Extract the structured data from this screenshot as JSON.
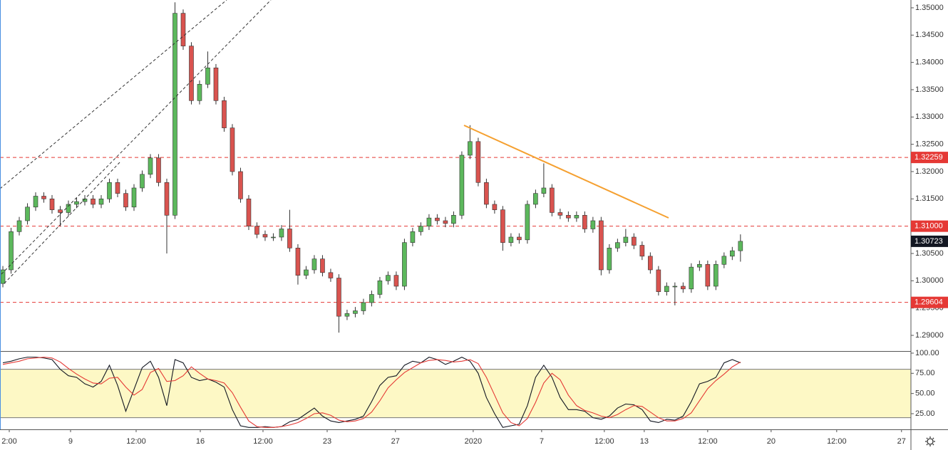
{
  "chart_data": [
    {
      "type": "candlestick",
      "xlim": [
        -0.35,
        110.8
      ],
      "xticks": [
        {
          "value": 0.78,
          "label": "2:00"
        },
        {
          "value": 8.26,
          "label": "9"
        },
        {
          "value": 16.26,
          "label": "12:00"
        },
        {
          "value": 24.09,
          "label": "16"
        },
        {
          "value": 31.74,
          "label": "12:00"
        },
        {
          "value": 39.57,
          "label": "23"
        },
        {
          "value": 47.9,
          "label": "27"
        },
        {
          "value": 57.39,
          "label": "2020"
        },
        {
          "value": 65.74,
          "label": "7"
        },
        {
          "value": 73.39,
          "label": "12:00"
        },
        {
          "value": 78.26,
          "label": "13"
        },
        {
          "value": 86,
          "label": "12:00"
        },
        {
          "value": 93.74,
          "label": "20"
        },
        {
          "value": 101.74,
          "label": "12:00"
        },
        {
          "value": 109.65,
          "label": "27"
        }
      ],
      "ylim": [
        1.28713,
        1.35143
      ],
      "yticks": [
        {
          "value": 1.29,
          "label": "1.29000"
        },
        {
          "value": 1.295,
          "label": "1.29500"
        },
        {
          "value": 1.3,
          "label": "1.30000"
        },
        {
          "value": 1.305,
          "label": "1.30500"
        },
        {
          "value": 1.31,
          "label": "1.31000"
        },
        {
          "value": 1.315,
          "label": "1.31500"
        },
        {
          "value": 1.32,
          "label": "1.32000"
        },
        {
          "value": 1.325,
          "label": "1.32500"
        },
        {
          "value": 1.33,
          "label": "1.33000"
        },
        {
          "value": 1.335,
          "label": "1.33500"
        },
        {
          "value": 1.34,
          "label": "1.34000"
        },
        {
          "value": 1.345,
          "label": "1.34500"
        },
        {
          "value": 1.35,
          "label": "1.35000"
        }
      ],
      "up_color": "#5cb85c",
      "down_color": "#d9534f",
      "open": [
        1.2995,
        1.302,
        1.309,
        1.311,
        1.3135,
        1.3155,
        1.315,
        1.313,
        1.3125,
        1.314,
        1.3145,
        1.315,
        1.314,
        1.315,
        1.318,
        1.316,
        1.3135,
        1.317,
        1.3195,
        1.3225,
        1.318,
        1.312,
        1.349,
        1.343,
        1.333,
        1.336,
        1.339,
        1.333,
        1.328,
        1.32,
        1.315,
        1.31,
        1.3085,
        1.308,
        1.308,
        1.3095,
        1.306,
        1.301,
        1.302,
        1.304,
        1.3015,
        1.3005,
        1.2935,
        1.294,
        1.2945,
        1.296,
        1.2975,
        1.3,
        1.301,
        1.299,
        1.307,
        1.309,
        1.31,
        1.3115,
        1.311,
        1.3105,
        1.312,
        1.323,
        1.3255,
        1.318,
        1.314,
        1.313,
        1.307,
        1.308,
        1.3075,
        1.314,
        1.316,
        1.317,
        1.3125,
        1.312,
        1.3115,
        1.312,
        1.3095,
        1.311,
        1.302,
        1.306,
        1.307,
        1.308,
        1.3065,
        1.3045,
        1.302,
        1.298,
        1.299,
        1.299,
        1.2985,
        1.3025,
        1.303,
        1.299,
        1.303,
        1.3045,
        1.3055
      ],
      "high": [
        1.3027,
        1.3097,
        1.3117,
        1.3142,
        1.3162,
        1.3162,
        1.3157,
        1.3137,
        1.3147,
        1.3152,
        1.3157,
        1.3157,
        1.3157,
        1.3187,
        1.3187,
        1.3167,
        1.3177,
        1.3202,
        1.3232,
        1.3232,
        1.3187,
        1.351,
        1.3497,
        1.3437,
        1.3367,
        1.342,
        1.3397,
        1.3337,
        1.3287,
        1.3207,
        1.3157,
        1.3107,
        1.3092,
        1.3087,
        1.3102,
        1.313,
        1.3067,
        1.3027,
        1.3047,
        1.3047,
        1.3022,
        1.3012,
        1.2947,
        1.2952,
        1.2967,
        1.2982,
        1.3007,
        1.3017,
        1.3017,
        1.3077,
        1.3097,
        1.3107,
        1.3122,
        1.3122,
        1.3117,
        1.3127,
        1.3237,
        1.3285,
        1.3262,
        1.3187,
        1.3147,
        1.3137,
        1.3087,
        1.3087,
        1.3147,
        1.3167,
        1.3215,
        1.3177,
        1.3132,
        1.3127,
        1.3127,
        1.3127,
        1.3117,
        1.3117,
        1.3067,
        1.3077,
        1.3095,
        1.3087,
        1.3072,
        1.3052,
        1.3027,
        1.2997,
        1.2997,
        1.2997,
        1.3032,
        1.3037,
        1.3037,
        1.3037,
        1.3052,
        1.3062,
        1.3085
      ],
      "low": [
        1.2988,
        1.3013,
        1.3083,
        1.3103,
        1.3128,
        1.3143,
        1.3123,
        1.31,
        1.3118,
        1.3133,
        1.3138,
        1.3133,
        1.3133,
        1.3143,
        1.3153,
        1.3128,
        1.3128,
        1.3163,
        1.3188,
        1.3173,
        1.305,
        1.3113,
        1.3423,
        1.3323,
        1.3323,
        1.3353,
        1.3323,
        1.3273,
        1.3193,
        1.3143,
        1.3093,
        1.3078,
        1.3073,
        1.3073,
        1.3073,
        1.3053,
        1.2993,
        1.3003,
        1.3013,
        1.3008,
        1.2998,
        1.2905,
        1.2928,
        1.2933,
        1.2938,
        1.2953,
        1.2968,
        1.2993,
        1.2983,
        1.2983,
        1.3063,
        1.3083,
        1.3093,
        1.3103,
        1.3098,
        1.3098,
        1.3113,
        1.3223,
        1.3173,
        1.3133,
        1.3123,
        1.3055,
        1.3063,
        1.3068,
        1.3068,
        1.3133,
        1.3153,
        1.3118,
        1.3113,
        1.3108,
        1.3108,
        1.3088,
        1.3088,
        1.301,
        1.3013,
        1.3053,
        1.3063,
        1.3058,
        1.3038,
        1.3013,
        1.2973,
        1.2973,
        1.2955,
        1.2978,
        1.2978,
        1.3018,
        1.2983,
        1.2983,
        1.3023,
        1.3038,
        1.3035
      ],
      "close": [
        1.302,
        1.309,
        1.311,
        1.3135,
        1.3155,
        1.315,
        1.313,
        1.3125,
        1.314,
        1.3145,
        1.315,
        1.314,
        1.315,
        1.318,
        1.316,
        1.3135,
        1.317,
        1.3195,
        1.3225,
        1.318,
        1.312,
        1.349,
        1.343,
        1.333,
        1.336,
        1.339,
        1.333,
        1.328,
        1.32,
        1.315,
        1.31,
        1.3085,
        1.308,
        1.308,
        1.3095,
        1.306,
        1.301,
        1.302,
        1.304,
        1.3015,
        1.3005,
        1.2935,
        1.294,
        1.2945,
        1.296,
        1.2975,
        1.3,
        1.301,
        1.299,
        1.307,
        1.309,
        1.31,
        1.3115,
        1.311,
        1.3105,
        1.312,
        1.323,
        1.3255,
        1.318,
        1.314,
        1.313,
        1.307,
        1.308,
        1.3075,
        1.314,
        1.316,
        1.317,
        1.3125,
        1.312,
        1.3115,
        1.312,
        1.3095,
        1.311,
        1.302,
        1.306,
        1.307,
        1.308,
        1.3065,
        1.3045,
        1.302,
        1.298,
        1.299,
        1.299,
        1.2985,
        1.3025,
        1.303,
        1.299,
        1.303,
        1.3045,
        1.3055,
        1.30723
      ],
      "levels": [
        {
          "value": 1.32259,
          "label": "1.32259"
        },
        {
          "value": 1.31,
          "label": "1.31000"
        },
        {
          "value": 1.29604,
          "label": "1.29604"
        }
      ],
      "level_color": "#e53935",
      "last_color": "#131722"
    },
    {
      "type": "line",
      "xlim": [
        -0.35,
        110.8
      ],
      "ylim": [
        5.6,
        102.6
      ],
      "yticks": [
        {
          "value": 25,
          "label": "25.00"
        },
        {
          "value": 50,
          "label": "50.00"
        },
        {
          "value": 75,
          "label": "75.00"
        },
        {
          "value": 100,
          "label": "100.00"
        }
      ],
      "bands": [
        20,
        80
      ],
      "band_color": "#fdf8c5",
      "series": [
        {
          "color": "#131722",
          "values": [
            88,
            90,
            93,
            95,
            95,
            94,
            92,
            80,
            72,
            70,
            62,
            58,
            65,
            85,
            60,
            28,
            55,
            82,
            90,
            70,
            35,
            92,
            88,
            70,
            66,
            68,
            64,
            58,
            30,
            10,
            8,
            8,
            9,
            8,
            9,
            15,
            18,
            25,
            32,
            22,
            16,
            14,
            16,
            18,
            22,
            40,
            60,
            70,
            72,
            85,
            90,
            88,
            95,
            92,
            86,
            90,
            95,
            90,
            75,
            45,
            25,
            8,
            10,
            12,
            35,
            70,
            85,
            70,
            45,
            30,
            30,
            28,
            20,
            18,
            22,
            32,
            37,
            36,
            30,
            16,
            14,
            18,
            17,
            22,
            40,
            62,
            65,
            70,
            88,
            92,
            88
          ]
        },
        {
          "color": "#e53935",
          "values": [
            86,
            88,
            90,
            93,
            94,
            95,
            94,
            89,
            81,
            74,
            68,
            63,
            62,
            69,
            70,
            58,
            48,
            55,
            76,
            81,
            65,
            66,
            72,
            83,
            75,
            68,
            66,
            63,
            51,
            33,
            16,
            9,
            8,
            8,
            9,
            11,
            14,
            19,
            25,
            26,
            23,
            17,
            15,
            16,
            19,
            27,
            41,
            57,
            67,
            76,
            82,
            88,
            91,
            92,
            91,
            89,
            90,
            92,
            87,
            70,
            48,
            26,
            14,
            10,
            19,
            39,
            63,
            75,
            67,
            48,
            35,
            29,
            26,
            22,
            20,
            24,
            30,
            35,
            34,
            27,
            20,
            16,
            16,
            19,
            26,
            41,
            56,
            66,
            74,
            83,
            89
          ]
        }
      ]
    }
  ]
}
